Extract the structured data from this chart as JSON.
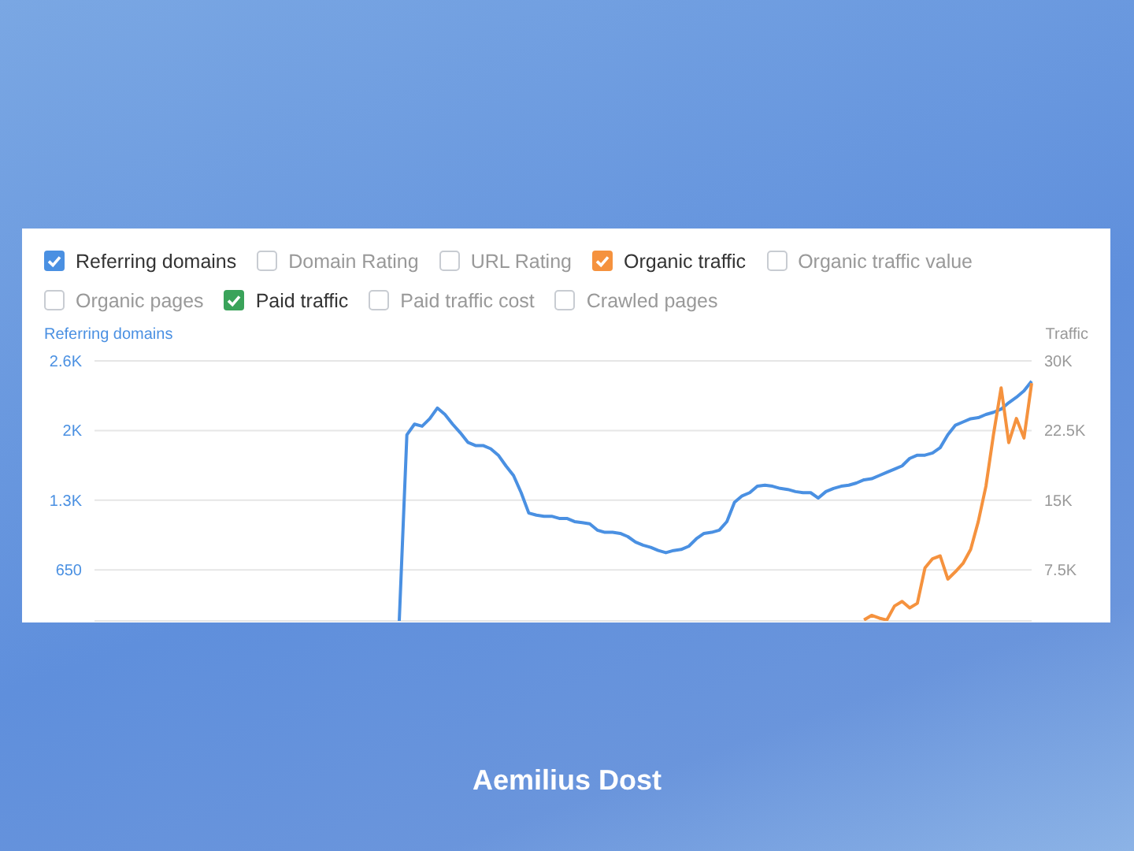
{
  "chart_data": {
    "type": "line",
    "ylabel": "Referring domains",
    "y2label": "Traffic",
    "categories": [
      null,
      null,
      null,
      null,
      null,
      null,
      null,
      null,
      null,
      null,
      null,
      null,
      null,
      null,
      null,
      null,
      null,
      null,
      null,
      null,
      null,
      null,
      null,
      null,
      null,
      null,
      null,
      null,
      null,
      null,
      null,
      null,
      null,
      null,
      null,
      null,
      null,
      null,
      null,
      null,
      null,
      null,
      null,
      null,
      null,
      null,
      null,
      null,
      null,
      null,
      null,
      null,
      null,
      null,
      null,
      null,
      null,
      null,
      null,
      null,
      null,
      null,
      null,
      null,
      null,
      null,
      null,
      null,
      null,
      null,
      null,
      null,
      null,
      null,
      null,
      null,
      null,
      null,
      null,
      null,
      null,
      null,
      null,
      null,
      null,
      null,
      null,
      null,
      null,
      null,
      null,
      null,
      null,
      null,
      null,
      null,
      null,
      null,
      null,
      null,
      null,
      null,
      null,
      null,
      null,
      null,
      null,
      null,
      null,
      null,
      null,
      null,
      null,
      null,
      null,
      null,
      null,
      null,
      null,
      null,
      null,
      null,
      null,
      null
    ],
    "series": [
      {
        "name": "Referring domains",
        "color": "#4a90e2",
        "values": [
          null,
          null,
          null,
          null,
          null,
          null,
          null,
          null,
          null,
          null,
          null,
          null,
          null,
          null,
          null,
          null,
          null,
          null,
          null,
          null,
          null,
          null,
          null,
          null,
          null,
          null,
          null,
          null,
          null,
          null,
          null,
          null,
          null,
          null,
          null,
          null,
          null,
          null,
          null,
          null,
          173,
          1910,
          2010,
          1990,
          2060,
          2160,
          2100,
          2010,
          1930,
          1840,
          1810,
          1810,
          1780,
          1720,
          1620,
          1530,
          1370,
          1180,
          1160,
          1150,
          1150,
          1130,
          1130,
          1100,
          1090,
          1080,
          1020,
          1000,
          1000,
          990,
          960,
          910,
          880,
          860,
          830,
          810,
          830,
          840,
          870,
          940,
          990,
          1000,
          1020,
          1100,
          1280,
          1340,
          1370,
          1430,
          1440,
          1430,
          1410,
          1400,
          1380,
          1370,
          1370,
          1320,
          1380,
          1410,
          1430,
          1440,
          1460,
          1490,
          1500,
          1530,
          1560,
          1590,
          1620,
          1690,
          1720,
          1720,
          1740,
          1790,
          1910,
          2000,
          2030,
          2060,
          2070,
          2100,
          2120,
          2150,
          2210,
          2260,
          2320,
          2410
        ]
      },
      {
        "name": "Organic traffic",
        "color": "#f5923e",
        "axis": "y2",
        "values": [
          null,
          null,
          null,
          null,
          null,
          null,
          null,
          null,
          null,
          null,
          null,
          null,
          null,
          null,
          null,
          null,
          null,
          null,
          null,
          null,
          null,
          null,
          null,
          null,
          null,
          null,
          null,
          null,
          null,
          null,
          null,
          null,
          null,
          null,
          null,
          null,
          null,
          null,
          null,
          null,
          null,
          null,
          null,
          null,
          null,
          null,
          null,
          null,
          null,
          null,
          null,
          null,
          null,
          null,
          null,
          null,
          null,
          null,
          null,
          null,
          null,
          null,
          null,
          null,
          null,
          null,
          null,
          null,
          null,
          null,
          null,
          null,
          null,
          null,
          null,
          null,
          null,
          null,
          null,
          null,
          null,
          null,
          null,
          null,
          null,
          null,
          null,
          null,
          null,
          null,
          null,
          null,
          null,
          null,
          null,
          null,
          null,
          null,
          null,
          null,
          null,
          2100,
          2600,
          2300,
          2100,
          3600,
          4100,
          3400,
          3900,
          7700,
          8700,
          9000,
          6500,
          7300,
          8200,
          9700,
          12700,
          16500,
          22100,
          27100,
          21200,
          23800,
          21700,
          27600
        ]
      },
      {
        "name": "Paid traffic",
        "color": "#3aa35a",
        "axis": "y2",
        "values": [
          null,
          null,
          null,
          null,
          null,
          null,
          null,
          null,
          null,
          null,
          null,
          null,
          null,
          null,
          null,
          null,
          null,
          null,
          null,
          null,
          null,
          null,
          null,
          null,
          null,
          null,
          null,
          null,
          null,
          null,
          null,
          null,
          null,
          null,
          null,
          null,
          null,
          null,
          null,
          null,
          null,
          null,
          null,
          null,
          null,
          null,
          null,
          null,
          null,
          null,
          null,
          null,
          null,
          null,
          null,
          null,
          null,
          null,
          null,
          null,
          null,
          null,
          null,
          null,
          null,
          null,
          null,
          null,
          null,
          null,
          null,
          null,
          null,
          null,
          null,
          null,
          null,
          null,
          null,
          null,
          null,
          null,
          null,
          null,
          null,
          null,
          null,
          null,
          null,
          null,
          null,
          null,
          null,
          null,
          null,
          null,
          null,
          null,
          null,
          null,
          null,
          null,
          null,
          null,
          null,
          null,
          null,
          null,
          null,
          null,
          null,
          null,
          null,
          null,
          null,
          null,
          null,
          null,
          null,
          null,
          null,
          null,
          null,
          null
        ]
      }
    ],
    "ylim": [
      173,
      2600
    ],
    "yticks": [
      650,
      {
        "value": 1300,
        "label": "1.3K"
      },
      {
        "value": 1950,
        "label": "2K"
      },
      {
        "value": 2600,
        "label": "2.6K"
      }
    ],
    "y2lim": [
      2000,
      30000
    ],
    "y2ticks": [
      {
        "value": 7500,
        "label": "7.5K"
      },
      {
        "value": 15000,
        "label": "15K"
      },
      {
        "value": 22500,
        "label": "22.5K"
      },
      {
        "value": 30000,
        "label": "30K"
      }
    ],
    "grid": "y",
    "legend": "top left",
    "marker": "none",
    "line_style": "solid",
    "annotations": [
      "Domain Rating",
      "URL Rating",
      "Organic traffic value",
      "Organic pages",
      "Paid traffic cost",
      "Crawled pages",
      "Aemilius Dost"
    ]
  }
}
